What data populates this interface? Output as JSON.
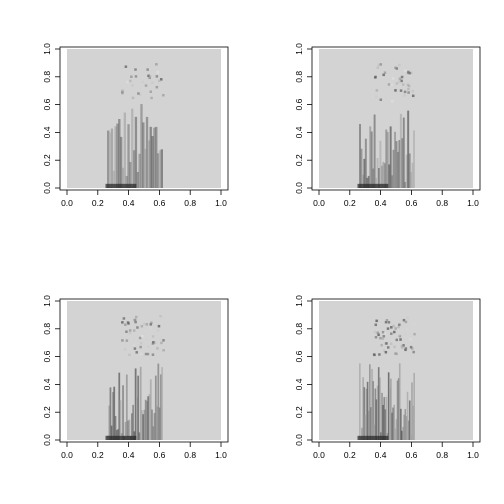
{
  "chart_data": [
    {
      "type": "heatmap",
      "xlim": [
        0,
        1
      ],
      "ylim": [
        0,
        1
      ],
      "x_ticks": [
        "0.0",
        "0.2",
        "0.4",
        "0.6",
        "0.8",
        "1.0"
      ],
      "y_ticks": [
        "0.0",
        "0.2",
        "0.4",
        "0.6",
        "0.8",
        "1.0"
      ],
      "grid": false,
      "detail_level": "very coarse, strong vertical streaks"
    },
    {
      "type": "heatmap",
      "xlim": [
        0,
        1
      ],
      "ylim": [
        0,
        1
      ],
      "x_ticks": [
        "0.0",
        "0.2",
        "0.4",
        "0.6",
        "0.8",
        "1.0"
      ],
      "y_ticks": [
        "0.0",
        "0.2",
        "0.4",
        "0.6",
        "0.8",
        "1.0"
      ],
      "grid": false,
      "detail_level": "coarse, faint figure"
    },
    {
      "type": "heatmap",
      "xlim": [
        0,
        1
      ],
      "ylim": [
        0,
        1
      ],
      "x_ticks": [
        "0.0",
        "0.2",
        "0.4",
        "0.6",
        "0.8",
        "1.0"
      ],
      "y_ticks": [
        "0.0",
        "0.2",
        "0.4",
        "0.6",
        "0.8",
        "1.0"
      ],
      "grid": false,
      "detail_level": "medium detail figure"
    },
    {
      "type": "heatmap",
      "xlim": [
        0,
        1
      ],
      "ylim": [
        0,
        1
      ],
      "x_ticks": [
        "0.0",
        "0.2",
        "0.4",
        "0.6",
        "0.8",
        "1.0"
      ],
      "y_ticks": [
        "0.0",
        "0.2",
        "0.4",
        "0.6",
        "0.8",
        "1.0"
      ],
      "grid": false,
      "detail_level": "fine detail figure"
    }
  ],
  "colors": {
    "background": "#ffffff",
    "image_fill": "#d3d3d3",
    "axis": "#000000"
  }
}
